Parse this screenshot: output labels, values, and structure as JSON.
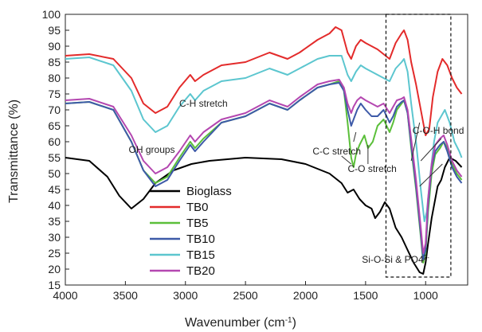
{
  "chart_data": {
    "type": "line",
    "xlabel": "Wavenumber (cm",
    "xlabel_sup": "-1",
    "xlabel_end": ")",
    "ylabel": "Transmittance (%)",
    "xlim": [
      4000,
      650
    ],
    "ylim": [
      15,
      100
    ],
    "x_ticks": [
      4000,
      3500,
      3000,
      2500,
      2000,
      1500,
      1000
    ],
    "y_ticks": [
      15,
      20,
      25,
      30,
      35,
      40,
      45,
      50,
      55,
      60,
      65,
      70,
      75,
      80,
      85,
      90,
      95,
      100
    ],
    "grid": false,
    "legend_position": "bottom-center",
    "series": [
      {
        "name": "Bioglass",
        "color": "#000000",
        "points": [
          [
            4000,
            55
          ],
          [
            3800,
            54
          ],
          [
            3650,
            49
          ],
          [
            3550,
            43
          ],
          [
            3450,
            39
          ],
          [
            3350,
            42
          ],
          [
            3250,
            47
          ],
          [
            3100,
            51
          ],
          [
            2950,
            53
          ],
          [
            2800,
            54
          ],
          [
            2500,
            55
          ],
          [
            2200,
            54.5
          ],
          [
            2000,
            53
          ],
          [
            1800,
            50
          ],
          [
            1700,
            47
          ],
          [
            1650,
            44
          ],
          [
            1600,
            45
          ],
          [
            1550,
            42
          ],
          [
            1500,
            40
          ],
          [
            1450,
            39
          ],
          [
            1420,
            36
          ],
          [
            1380,
            38
          ],
          [
            1340,
            41
          ],
          [
            1300,
            39
          ],
          [
            1250,
            33
          ],
          [
            1200,
            30
          ],
          [
            1150,
            26
          ],
          [
            1100,
            22
          ],
          [
            1050,
            19
          ],
          [
            1020,
            18.5
          ],
          [
            1000,
            22
          ],
          [
            980,
            28
          ],
          [
            950,
            36
          ],
          [
            900,
            46
          ],
          [
            870,
            48
          ],
          [
            840,
            52
          ],
          [
            800,
            55
          ],
          [
            750,
            54
          ],
          [
            700,
            52
          ]
        ]
      },
      {
        "name": "TB0",
        "color": "#e32b2b",
        "points": [
          [
            4000,
            87
          ],
          [
            3800,
            87.5
          ],
          [
            3600,
            86
          ],
          [
            3450,
            80
          ],
          [
            3350,
            72
          ],
          [
            3250,
            69
          ],
          [
            3150,
            71
          ],
          [
            3050,
            77
          ],
          [
            2960,
            81
          ],
          [
            2920,
            79
          ],
          [
            2850,
            81
          ],
          [
            2700,
            84
          ],
          [
            2500,
            85
          ],
          [
            2300,
            88
          ],
          [
            2150,
            86
          ],
          [
            2050,
            88
          ],
          [
            1900,
            92
          ],
          [
            1800,
            94
          ],
          [
            1750,
            96
          ],
          [
            1700,
            95
          ],
          [
            1650,
            88
          ],
          [
            1620,
            86
          ],
          [
            1580,
            90
          ],
          [
            1540,
            92
          ],
          [
            1500,
            91
          ],
          [
            1400,
            89
          ],
          [
            1300,
            86
          ],
          [
            1250,
            91
          ],
          [
            1200,
            94
          ],
          [
            1180,
            95
          ],
          [
            1150,
            92
          ],
          [
            1120,
            85
          ],
          [
            1080,
            78
          ],
          [
            1040,
            70
          ],
          [
            1000,
            62
          ],
          [
            970,
            64
          ],
          [
            940,
            74
          ],
          [
            900,
            82
          ],
          [
            860,
            86
          ],
          [
            820,
            84
          ],
          [
            780,
            80
          ],
          [
            740,
            77
          ],
          [
            700,
            75
          ]
        ]
      },
      {
        "name": "TB5",
        "color": "#5bbf3a",
        "points": [
          [
            4000,
            72
          ],
          [
            3800,
            72.5
          ],
          [
            3600,
            70
          ],
          [
            3450,
            60
          ],
          [
            3350,
            51
          ],
          [
            3250,
            47
          ],
          [
            3150,
            49
          ],
          [
            3050,
            55
          ],
          [
            2960,
            60
          ],
          [
            2920,
            58
          ],
          [
            2850,
            61
          ],
          [
            2700,
            66
          ],
          [
            2500,
            68
          ],
          [
            2300,
            72
          ],
          [
            2150,
            70
          ],
          [
            2050,
            73
          ],
          [
            1900,
            77
          ],
          [
            1800,
            78
          ],
          [
            1720,
            79
          ],
          [
            1680,
            76
          ],
          [
            1650,
            66
          ],
          [
            1620,
            55
          ],
          [
            1600,
            52
          ],
          [
            1580,
            56
          ],
          [
            1550,
            59
          ],
          [
            1510,
            62
          ],
          [
            1480,
            58
          ],
          [
            1440,
            60
          ],
          [
            1400,
            65
          ],
          [
            1350,
            67
          ],
          [
            1300,
            63
          ],
          [
            1270,
            66
          ],
          [
            1240,
            70
          ],
          [
            1200,
            72
          ],
          [
            1180,
            73
          ],
          [
            1150,
            69
          ],
          [
            1120,
            58
          ],
          [
            1080,
            45
          ],
          [
            1040,
            30
          ],
          [
            1020,
            22
          ],
          [
            1000,
            25
          ],
          [
            980,
            38
          ],
          [
            950,
            50
          ],
          [
            920,
            56
          ],
          [
            880,
            58
          ],
          [
            850,
            60
          ],
          [
            820,
            58
          ],
          [
            780,
            53
          ],
          [
            740,
            50
          ],
          [
            700,
            48
          ]
        ]
      },
      {
        "name": "TB10",
        "color": "#3d5aa8",
        "points": [
          [
            4000,
            72
          ],
          [
            3800,
            72.5
          ],
          [
            3600,
            70
          ],
          [
            3450,
            60
          ],
          [
            3350,
            51
          ],
          [
            3250,
            46
          ],
          [
            3150,
            48
          ],
          [
            3050,
            54
          ],
          [
            2960,
            59
          ],
          [
            2920,
            57
          ],
          [
            2850,
            60
          ],
          [
            2700,
            66
          ],
          [
            2500,
            68
          ],
          [
            2300,
            72
          ],
          [
            2150,
            70
          ],
          [
            2050,
            73
          ],
          [
            1900,
            77
          ],
          [
            1800,
            78
          ],
          [
            1720,
            78.5
          ],
          [
            1680,
            76
          ],
          [
            1650,
            70
          ],
          [
            1620,
            65
          ],
          [
            1600,
            67
          ],
          [
            1570,
            70
          ],
          [
            1540,
            72
          ],
          [
            1500,
            70
          ],
          [
            1450,
            68
          ],
          [
            1400,
            68
          ],
          [
            1350,
            70
          ],
          [
            1300,
            66
          ],
          [
            1270,
            68
          ],
          [
            1240,
            71
          ],
          [
            1200,
            72.5
          ],
          [
            1180,
            73
          ],
          [
            1150,
            69
          ],
          [
            1120,
            59
          ],
          [
            1080,
            46
          ],
          [
            1040,
            31
          ],
          [
            1020,
            23
          ],
          [
            1000,
            26
          ],
          [
            980,
            40
          ],
          [
            950,
            52
          ],
          [
            920,
            57
          ],
          [
            880,
            59
          ],
          [
            850,
            60
          ],
          [
            820,
            57
          ],
          [
            780,
            52
          ],
          [
            740,
            49
          ],
          [
            700,
            47
          ]
        ]
      },
      {
        "name": "TB15",
        "color": "#5cc6cf",
        "points": [
          [
            4000,
            86
          ],
          [
            3800,
            86.5
          ],
          [
            3600,
            84
          ],
          [
            3450,
            76
          ],
          [
            3350,
            67
          ],
          [
            3250,
            63
          ],
          [
            3150,
            65
          ],
          [
            3050,
            71
          ],
          [
            2960,
            75
          ],
          [
            2920,
            73
          ],
          [
            2850,
            76
          ],
          [
            2700,
            79
          ],
          [
            2500,
            80
          ],
          [
            2300,
            83
          ],
          [
            2150,
            81
          ],
          [
            2050,
            83
          ],
          [
            1900,
            86
          ],
          [
            1800,
            87
          ],
          [
            1700,
            87
          ],
          [
            1650,
            81
          ],
          [
            1620,
            79
          ],
          [
            1580,
            82
          ],
          [
            1540,
            84
          ],
          [
            1500,
            83
          ],
          [
            1400,
            81
          ],
          [
            1300,
            79
          ],
          [
            1250,
            83
          ],
          [
            1200,
            85
          ],
          [
            1180,
            86
          ],
          [
            1150,
            82
          ],
          [
            1120,
            72
          ],
          [
            1080,
            60
          ],
          [
            1040,
            45
          ],
          [
            1010,
            35
          ],
          [
            990,
            38
          ],
          [
            960,
            50
          ],
          [
            930,
            60
          ],
          [
            900,
            66
          ],
          [
            870,
            68
          ],
          [
            840,
            70
          ],
          [
            800,
            66
          ],
          [
            760,
            60
          ],
          [
            720,
            57
          ],
          [
            700,
            55
          ]
        ]
      },
      {
        "name": "TB20",
        "color": "#b447b0",
        "points": [
          [
            4000,
            73
          ],
          [
            3800,
            73.5
          ],
          [
            3600,
            71
          ],
          [
            3450,
            62
          ],
          [
            3350,
            54
          ],
          [
            3250,
            50
          ],
          [
            3150,
            52
          ],
          [
            3050,
            57
          ],
          [
            2960,
            62
          ],
          [
            2920,
            60
          ],
          [
            2850,
            63
          ],
          [
            2700,
            67
          ],
          [
            2500,
            69
          ],
          [
            2300,
            73
          ],
          [
            2150,
            71
          ],
          [
            2050,
            74
          ],
          [
            1900,
            78
          ],
          [
            1800,
            79
          ],
          [
            1720,
            79.5
          ],
          [
            1680,
            77
          ],
          [
            1650,
            72
          ],
          [
            1620,
            69
          ],
          [
            1600,
            71
          ],
          [
            1570,
            73
          ],
          [
            1540,
            74
          ],
          [
            1500,
            73
          ],
          [
            1450,
            72
          ],
          [
            1400,
            71
          ],
          [
            1350,
            72
          ],
          [
            1300,
            69
          ],
          [
            1270,
            71
          ],
          [
            1240,
            73
          ],
          [
            1200,
            73.5
          ],
          [
            1180,
            74
          ],
          [
            1150,
            70
          ],
          [
            1120,
            61
          ],
          [
            1080,
            48
          ],
          [
            1040,
            33
          ],
          [
            1020,
            25
          ],
          [
            1000,
            28
          ],
          [
            980,
            42
          ],
          [
            950,
            53
          ],
          [
            920,
            59
          ],
          [
            880,
            61
          ],
          [
            850,
            62
          ],
          [
            820,
            59
          ],
          [
            780,
            54
          ],
          [
            740,
            51
          ],
          [
            700,
            49
          ]
        ]
      }
    ],
    "annotations": [
      {
        "text": "C-H stretch",
        "x": 2850,
        "y": 71
      },
      {
        "text": "OH groups",
        "x": 3280,
        "y": 56.5
      },
      {
        "text": "C-C stretch",
        "x": 1740,
        "y": 56
      },
      {
        "text": "C-O stretch",
        "x": 1445,
        "y": 50.5
      },
      {
        "text": "C-O-H bond",
        "x": 895,
        "y": 62.5
      },
      {
        "text": "Si-O-Si & PO4",
        "sup": "2-",
        "x": 1250,
        "y": 22
      }
    ],
    "highlight_box": {
      "x_range": [
        1330,
        790
      ],
      "y_range": [
        17.5,
        100
      ]
    }
  }
}
